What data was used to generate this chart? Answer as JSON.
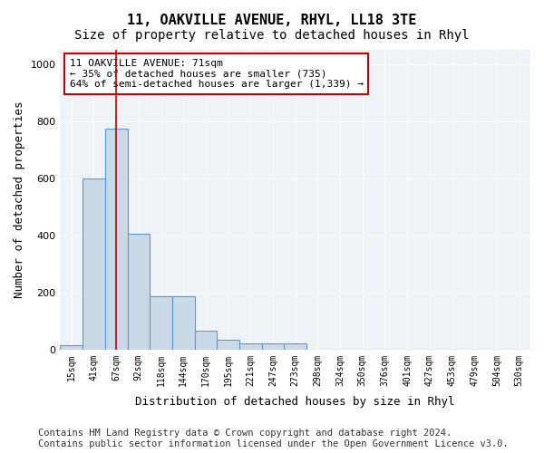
{
  "title": "11, OAKVILLE AVENUE, RHYL, LL18 3TE",
  "subtitle": "Size of property relative to detached houses in Rhyl",
  "xlabel": "Distribution of detached houses by size in Rhyl",
  "ylabel": "Number of detached properties",
  "bins": [
    "15sqm",
    "41sqm",
    "67sqm",
    "92sqm",
    "118sqm",
    "144sqm",
    "170sqm",
    "195sqm",
    "221sqm",
    "247sqm",
    "273sqm",
    "298sqm",
    "324sqm",
    "350sqm",
    "376sqm",
    "401sqm",
    "427sqm",
    "453sqm",
    "479sqm",
    "504sqm",
    "530sqm"
  ],
  "bar_values": [
    15,
    600,
    775,
    405,
    185,
    185,
    65,
    35,
    20,
    20,
    20,
    0,
    0,
    0,
    0,
    0,
    0,
    0,
    0,
    0,
    0
  ],
  "bar_color": "#c9d9e8",
  "bar_edge_color": "#5b9bd5",
  "vline_x": 2.0,
  "vline_color": "#c00000",
  "annotation_text": "11 OAKVILLE AVENUE: 71sqm\n← 35% of detached houses are smaller (735)\n64% of semi-detached houses are larger (1,339) →",
  "annotation_box_color": "#ffffff",
  "annotation_box_edge": "#c00000",
  "ylim": [
    0,
    1050
  ],
  "yticks": [
    0,
    200,
    400,
    600,
    800,
    1000
  ],
  "footer": "Contains HM Land Registry data © Crown copyright and database right 2024.\nContains public sector information licensed under the Open Government Licence v3.0.",
  "bg_color": "#ffffff",
  "plot_bg_color": "#eef3f8",
  "grid_color": "#ffffff",
  "title_fontsize": 11,
  "subtitle_fontsize": 10,
  "xlabel_fontsize": 9,
  "ylabel_fontsize": 9,
  "footer_fontsize": 7.5
}
